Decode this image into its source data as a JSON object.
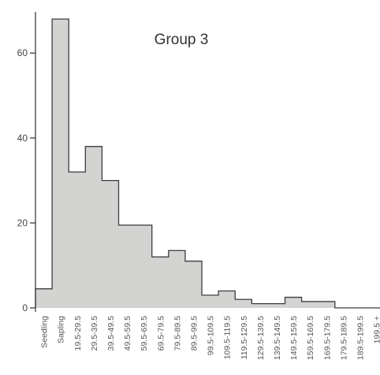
{
  "chart_data": {
    "type": "bar",
    "title": "Group 3",
    "xlabel": "",
    "ylabel": "",
    "ylim": [
      0,
      72
    ],
    "yticks": [
      0,
      20,
      40,
      60
    ],
    "grid": false,
    "categories": [
      "Seedling",
      "Sapling",
      "19.5-29.5",
      "29.5-39.5",
      "39.5-49.5",
      "49.5-59.5",
      "59.5-69.5",
      "69.5-79.5",
      "79.5-89.5",
      "89.5-99.5",
      "99.5-109.5",
      "109.5-119.5",
      "119.5-129.5",
      "129.5-139.5",
      "139.5-149.5",
      "149.5-159.5",
      "159.5-169.5",
      "169.5-179.5",
      "179.5-189.5",
      "189.5-199.5",
      "199.5 +"
    ],
    "values": [
      4.5,
      68,
      32,
      38,
      30,
      19.5,
      19.5,
      12,
      13.5,
      11,
      3,
      4,
      2,
      1,
      1,
      2.5,
      1.5,
      1.5,
      0,
      0,
      0
    ],
    "colors": {
      "fill": "#d3d3d1",
      "stroke": "#3d3d3d",
      "axis": "#3d3d3d"
    }
  }
}
